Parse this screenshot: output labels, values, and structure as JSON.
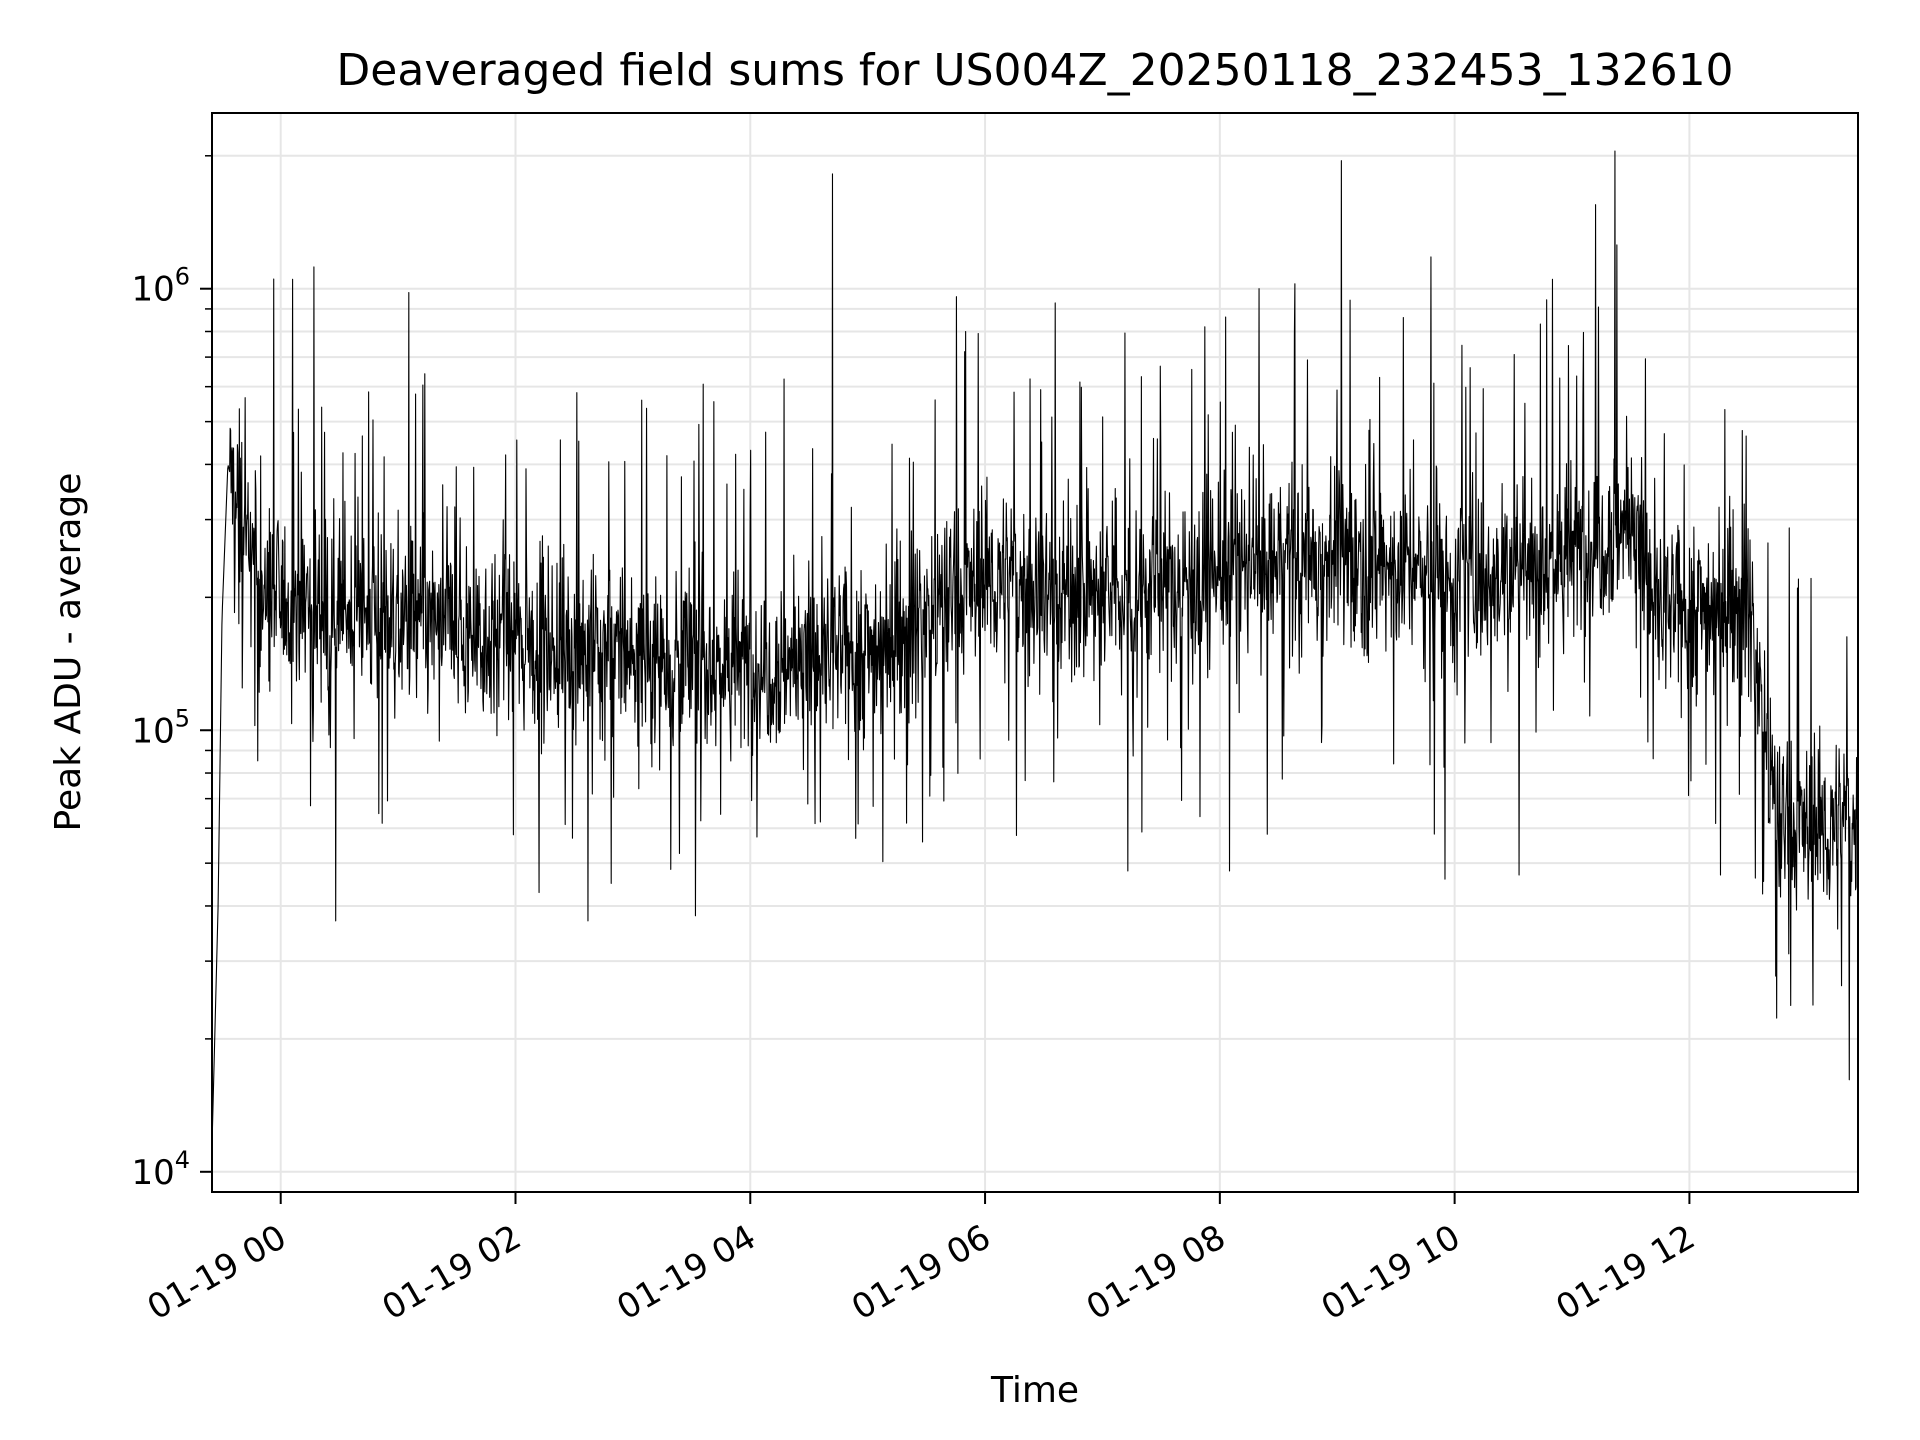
{
  "chart_data": {
    "type": "line",
    "title": "Deaveraged field sums for US004Z_20250118_232453_132610",
    "xlabel": "Time",
    "ylabel": "Peak ADU - average",
    "x_start": "2025-01-18 23:24:53",
    "x_end": "2025-01-19 13:26:10",
    "xlim": [
      "2025-01-18 23:24:53",
      "2025-01-19 13:26:10"
    ],
    "ylim": [
      9000,
      2500000
    ],
    "yscale": "log",
    "grid": true,
    "legend": "none",
    "x_ticks": [
      "01-19 00",
      "01-19 02",
      "01-19 04",
      "01-19 06",
      "01-19 08",
      "01-19 10",
      "01-19 12"
    ],
    "y_ticks": [
      {
        "base": "10",
        "exp": "4",
        "value": 10000
      },
      {
        "base": "10",
        "exp": "5",
        "value": 100000
      },
      {
        "base": "10",
        "exp": "6",
        "value": 1000000
      }
    ],
    "line_color": "#000000",
    "samples": 3400,
    "series": [
      {
        "name": "",
        "baseline_points": [
          {
            "t": "2025-01-18 23:25",
            "y": 12000
          },
          {
            "t": "2025-01-18 23:28",
            "y": 40000
          },
          {
            "t": "2025-01-18 23:30",
            "y": 180000
          },
          {
            "t": "2025-01-18 23:33",
            "y": 400000
          },
          {
            "t": "2025-01-18 23:40",
            "y": 300000
          },
          {
            "t": "2025-01-18 23:50",
            "y": 200000
          },
          {
            "t": "2025-01-19 01:00",
            "y": 180000
          },
          {
            "t": "2025-01-19 02:00",
            "y": 160000
          },
          {
            "t": "2025-01-19 03:00",
            "y": 150000
          },
          {
            "t": "2025-01-19 04:00",
            "y": 140000
          },
          {
            "t": "2025-01-19 05:00",
            "y": 150000
          },
          {
            "t": "2025-01-19 06:00",
            "y": 220000
          },
          {
            "t": "2025-01-19 07:00",
            "y": 200000
          },
          {
            "t": "2025-01-19 08:00",
            "y": 230000
          },
          {
            "t": "2025-01-19 09:00",
            "y": 250000
          },
          {
            "t": "2025-01-19 10:00",
            "y": 220000
          },
          {
            "t": "2025-01-19 11:00",
            "y": 250000
          },
          {
            "t": "2025-01-19 11:30",
            "y": 300000
          },
          {
            "t": "2025-01-19 11:45",
            "y": 180000
          },
          {
            "t": "2025-01-19 12:30",
            "y": 200000
          },
          {
            "t": "2025-01-19 12:45",
            "y": 60000
          }
        ],
        "peaks": [
          {
            "t": "2025-01-19 00:06",
            "y": 1050000
          },
          {
            "t": "2025-01-19 00:17",
            "y": 1120000
          },
          {
            "t": "2025-01-19 04:42",
            "y": 1820000
          },
          {
            "t": "2025-01-19 09:02",
            "y": 1950000
          },
          {
            "t": "2025-01-19 09:48",
            "y": 1180000
          },
          {
            "t": "2025-01-19 10:50",
            "y": 1050000
          },
          {
            "t": "2025-01-19 11:12",
            "y": 1550000
          },
          {
            "t": "2025-01-19 11:22",
            "y": 2050000
          },
          {
            "t": "2025-01-19 08:20",
            "y": 1000000
          },
          {
            "t": "2025-01-19 05:50",
            "y": 800000
          }
        ],
        "troughs": [
          {
            "t": "2025-01-19 00:28",
            "y": 37000
          },
          {
            "t": "2025-01-19 02:37",
            "y": 37000
          },
          {
            "t": "2025-01-19 03:32",
            "y": 38000
          },
          {
            "t": "2025-01-19 07:13",
            "y": 48000
          },
          {
            "t": "2025-01-19 08:05",
            "y": 48000
          },
          {
            "t": "2025-01-19 09:55",
            "y": 46000
          },
          {
            "t": "2025-01-19 10:33",
            "y": 47000
          },
          {
            "t": "2025-01-19 12:16",
            "y": 47000
          }
        ]
      }
    ]
  }
}
